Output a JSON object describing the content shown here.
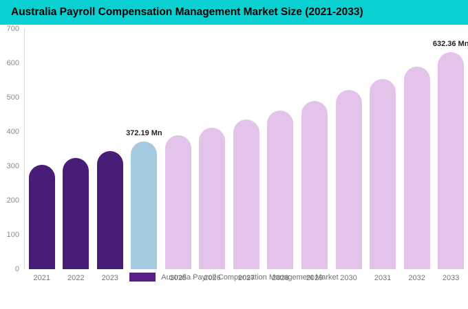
{
  "title": "Australia Payroll Compensation Management Market Size (2021-2033)",
  "colors": {
    "title_bg": "#0bd0d2",
    "dark_purple": "#471d78",
    "highlight_blue": "#a4cbe0",
    "light_pink": "#e3c3ea",
    "legend_swatch": "#5b1d8c"
  },
  "chart_data": {
    "type": "bar",
    "title": "Australia Payroll Compensation Management Market Size (2021-2033)",
    "categories": [
      "2021",
      "2022",
      "2023",
      "2024",
      "2025",
      "2026",
      "2027",
      "2028",
      "2029",
      "2030",
      "2031",
      "2032",
      "2033"
    ],
    "values": [
      305,
      324,
      345,
      372.19,
      390,
      412,
      437,
      463,
      491,
      522,
      555,
      590,
      632.36
    ],
    "bar_colors": [
      "#471d78",
      "#471d78",
      "#471d78",
      "#a4cbe0",
      "#e3c3ea",
      "#e3c3ea",
      "#e3c3ea",
      "#e3c3ea",
      "#e3c3ea",
      "#e3c3ea",
      "#e3c3ea",
      "#e3c3ea",
      "#e3c3ea"
    ],
    "annotations": [
      {
        "index": 3,
        "text": "372.19 Mn"
      },
      {
        "index": 12,
        "text": "632.36 Mn"
      }
    ],
    "xlabel": "",
    "ylabel": "",
    "ylim": [
      0,
      700
    ],
    "yticks": [
      0,
      100,
      200,
      300,
      400,
      500,
      600,
      700
    ],
    "grid": false,
    "legend_position": "bottom"
  },
  "legend": {
    "label": "Australia Payroll Compensation Management Market"
  }
}
